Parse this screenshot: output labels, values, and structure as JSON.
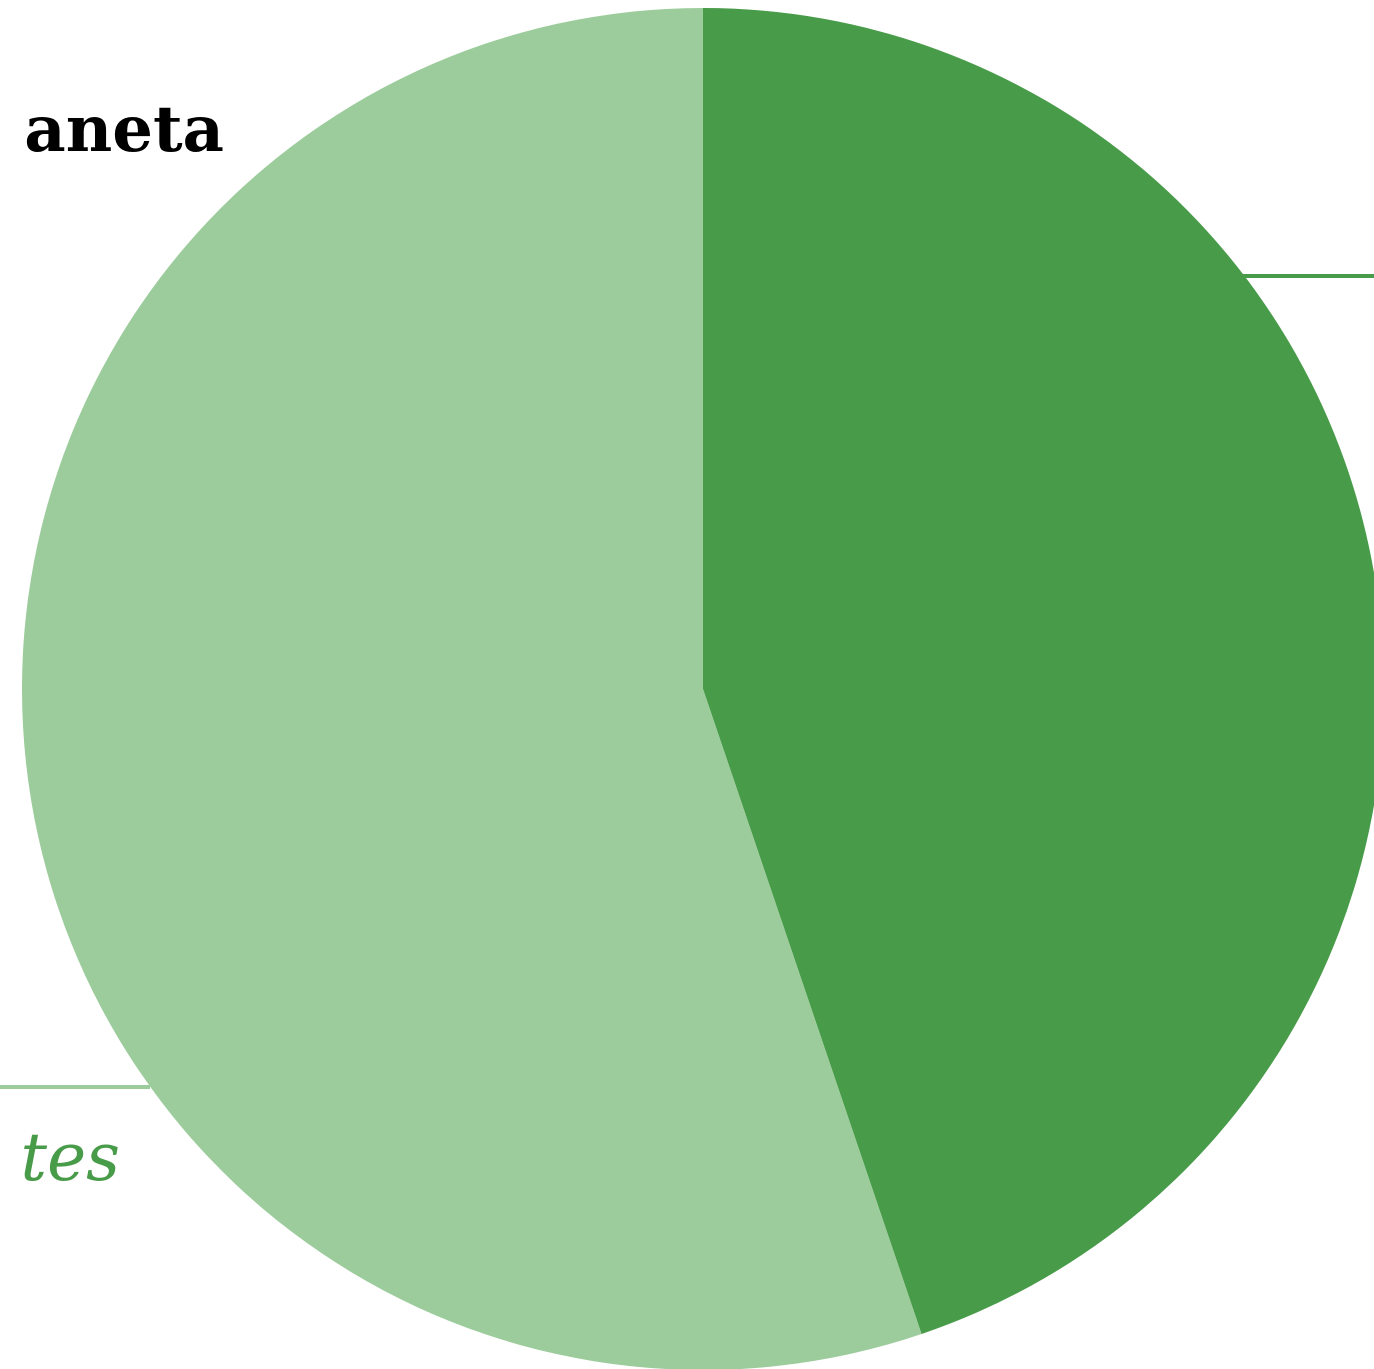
{
  "chart_data": {
    "type": "pie",
    "title": "aneta",
    "slices": [
      {
        "label": "",
        "value": 44.8,
        "color": "#489b48"
      },
      {
        "label": "tes",
        "value": 55.2,
        "color": "#9ccc9c"
      }
    ],
    "start_angle_deg": 0,
    "direction": "clockwise",
    "legend": "none"
  }
}
